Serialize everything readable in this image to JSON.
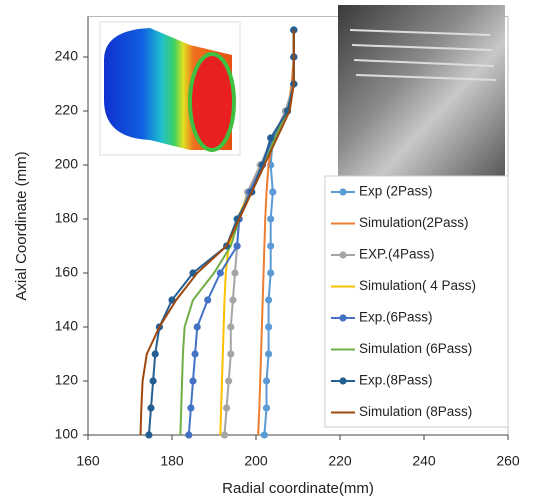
{
  "chart_data": {
    "type": "line",
    "x_label": "Radial coordinate(mm)",
    "y_label": "Axial Coordinate (mm)",
    "xlim": [
      160,
      260
    ],
    "xticks": [
      160,
      180,
      200,
      220,
      240,
      260
    ],
    "ylim": [
      100,
      255
    ],
    "yticks": [
      100,
      120,
      140,
      160,
      180,
      200,
      220,
      240
    ],
    "y": [
      100,
      110,
      120,
      130,
      140,
      150,
      160,
      170,
      180,
      190,
      200,
      210,
      220,
      230,
      240,
      250
    ],
    "series": [
      {
        "name": "Exp (2Pass)",
        "color": "#5B9BD5",
        "marker": true,
        "x": [
          202,
          202.5,
          202.5,
          203,
          203,
          203,
          203.5,
          203.5,
          203.5,
          204,
          203.5,
          204,
          207.5,
          209,
          209,
          209
        ]
      },
      {
        "name": "Simulation(2Pass)",
        "color": "#ED7D31",
        "marker": false,
        "x": [
          200.5,
          200.8,
          201,
          201.2,
          201.4,
          201.6,
          201.8,
          202,
          202.2,
          202.5,
          203,
          204,
          207.5,
          208.5,
          209,
          209
        ]
      },
      {
        "name": "EXP.(4Pass)",
        "color": "#A5A5A5",
        "marker": true,
        "x": [
          192.5,
          193,
          193.5,
          194,
          194,
          194.5,
          195,
          195.5,
          196,
          198,
          201,
          204,
          207,
          209,
          209,
          209
        ]
      },
      {
        "name": "Simulation( 4 Pass)",
        "color": "#FFC000",
        "marker": false,
        "x": [
          191.5,
          191.7,
          191.9,
          192.1,
          192.3,
          192.5,
          192.8,
          193.5,
          195.5,
          198.5,
          201.5,
          204.5,
          207.5,
          209,
          209,
          209
        ]
      },
      {
        "name": "Exp.(6Pass)",
        "color": "#4472C4",
        "marker": true,
        "x": [
          184,
          184.5,
          185,
          185.5,
          186,
          188.5,
          191.5,
          195.5,
          196,
          198.5,
          201.5,
          204,
          207.5,
          209,
          209,
          209
        ]
      },
      {
        "name": "Simulation (6Pass)",
        "color": "#70AD47",
        "marker": false,
        "x": [
          182,
          182.2,
          182.4,
          182.6,
          183,
          185,
          190,
          194,
          196,
          199,
          202,
          204.5,
          207.5,
          209,
          209,
          209
        ]
      },
      {
        "name": "Exp.(8Pass)",
        "color": "#255E91",
        "marker": true,
        "x": [
          174.5,
          175,
          175.5,
          176,
          177,
          180,
          185,
          193,
          195.5,
          199,
          201.5,
          203.5,
          207.5,
          209,
          209,
          209
        ]
      },
      {
        "name": "Simulation (8Pass)",
        "color": "#9E480E",
        "marker": false,
        "x": [
          172.5,
          172.7,
          173,
          174,
          177,
          181,
          186,
          193,
          196,
          199,
          202,
          205,
          208,
          209,
          209,
          209
        ]
      }
    ]
  }
}
